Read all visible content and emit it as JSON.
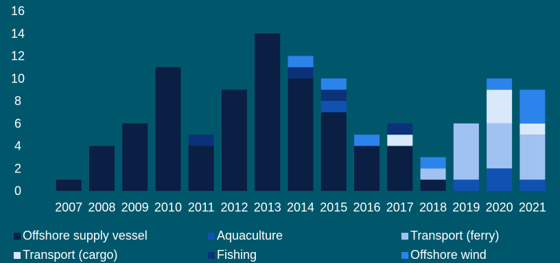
{
  "chart_data": {
    "type": "bar",
    "stacked": true,
    "categories": [
      "2007",
      "2008",
      "2009",
      "2010",
      "2011",
      "2012",
      "2013",
      "2014",
      "2015",
      "2016",
      "2017",
      "2018",
      "2019",
      "2020",
      "2021"
    ],
    "ylim": [
      0,
      16
    ],
    "yticks": [
      0,
      2,
      4,
      6,
      8,
      10,
      12,
      14,
      16
    ],
    "grid": false,
    "legend_position": "bottom",
    "series": [
      {
        "name": "Offshore supply vessel",
        "color": "#0b1e44",
        "values": [
          1,
          4,
          6,
          11,
          4,
          9,
          14,
          10,
          7,
          4,
          4,
          1,
          0,
          0,
          0
        ]
      },
      {
        "name": "Aquaculture",
        "color": "#1151b2",
        "values": [
          0,
          0,
          0,
          0,
          0,
          0,
          0,
          0,
          1,
          0,
          0,
          0,
          1,
          2,
          1
        ]
      },
      {
        "name": "Transport (ferry)",
        "color": "#a0c2f2",
        "values": [
          0,
          0,
          0,
          0,
          0,
          0,
          0,
          0,
          0,
          0,
          0,
          1,
          5,
          4,
          4
        ]
      },
      {
        "name": "Transport (cargo)",
        "color": "#d9e8fa",
        "values": [
          0,
          0,
          0,
          0,
          0,
          0,
          0,
          0,
          0,
          0,
          1,
          0,
          0,
          3,
          1
        ]
      },
      {
        "name": "Fishing",
        "color": "#0b3278",
        "values": [
          0,
          0,
          0,
          0,
          1,
          0,
          0,
          1,
          1,
          0,
          1,
          0,
          0,
          0,
          0
        ]
      },
      {
        "name": "Offshore wind",
        "color": "#2b84ec",
        "values": [
          0,
          0,
          0,
          0,
          0,
          0,
          0,
          1,
          1,
          1,
          0,
          1,
          0,
          1,
          3
        ]
      }
    ]
  }
}
